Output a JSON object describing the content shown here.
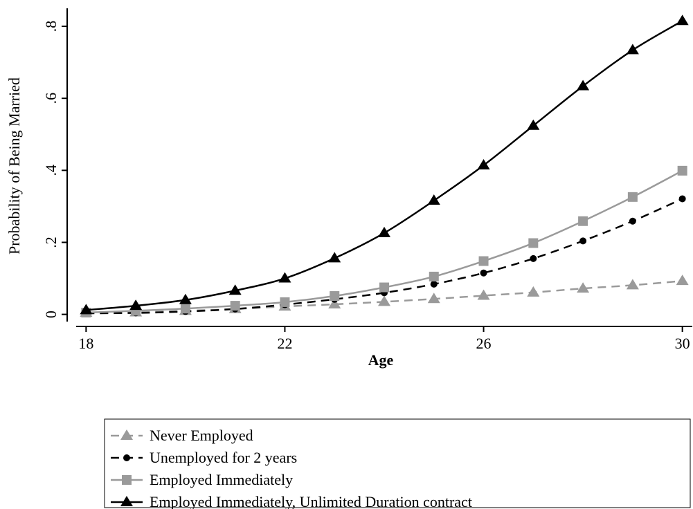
{
  "chart_data": {
    "type": "line",
    "x_label": "Age",
    "y_label": "Probability of Being Married",
    "x": [
      18,
      19,
      20,
      21,
      22,
      23,
      24,
      25,
      26,
      27,
      28,
      29,
      30
    ],
    "xlim": [
      17.8,
      30.2
    ],
    "xticks": [
      18,
      22,
      26,
      30
    ],
    "ylim": [
      -0.02,
      0.85
    ],
    "yticks": [
      0,
      {
        "value": 0.2,
        "label": ".2"
      },
      {
        "value": 0.4,
        "label": ".4"
      },
      {
        "value": 0.6,
        "label": ".6"
      },
      {
        "value": 0.8,
        "label": ".8"
      }
    ],
    "series": [
      {
        "name": "Never Employed",
        "color": "#9a9a9a",
        "dash": true,
        "marker": "triangle",
        "values": [
          0.005,
          0.006,
          0.01,
          0.015,
          0.022,
          0.028,
          0.035,
          0.043,
          0.052,
          0.061,
          0.072,
          0.081,
          0.093
        ]
      },
      {
        "name": "Unemployed for 2 years",
        "color": "#000000",
        "dash": true,
        "marker": "circle",
        "values": [
          0.003,
          0.004,
          0.008,
          0.015,
          0.027,
          0.042,
          0.06,
          0.084,
          0.115,
          0.155,
          0.204,
          0.259,
          0.321
        ]
      },
      {
        "name": "Employed Immediately",
        "color": "#9a9a9a",
        "dash": false,
        "marker": "square",
        "values": [
          0.005,
          0.01,
          0.016,
          0.024,
          0.034,
          0.051,
          0.075,
          0.105,
          0.148,
          0.198,
          0.259,
          0.326,
          0.399
        ]
      },
      {
        "name": "Employed Immediately, Unlimited Duration contract",
        "color": "#000000",
        "dash": false,
        "marker": "triangle",
        "values": [
          0.012,
          0.024,
          0.04,
          0.066,
          0.1,
          0.156,
          0.226,
          0.316,
          0.414,
          0.524,
          0.634,
          0.734,
          0.815
        ]
      }
    ]
  }
}
